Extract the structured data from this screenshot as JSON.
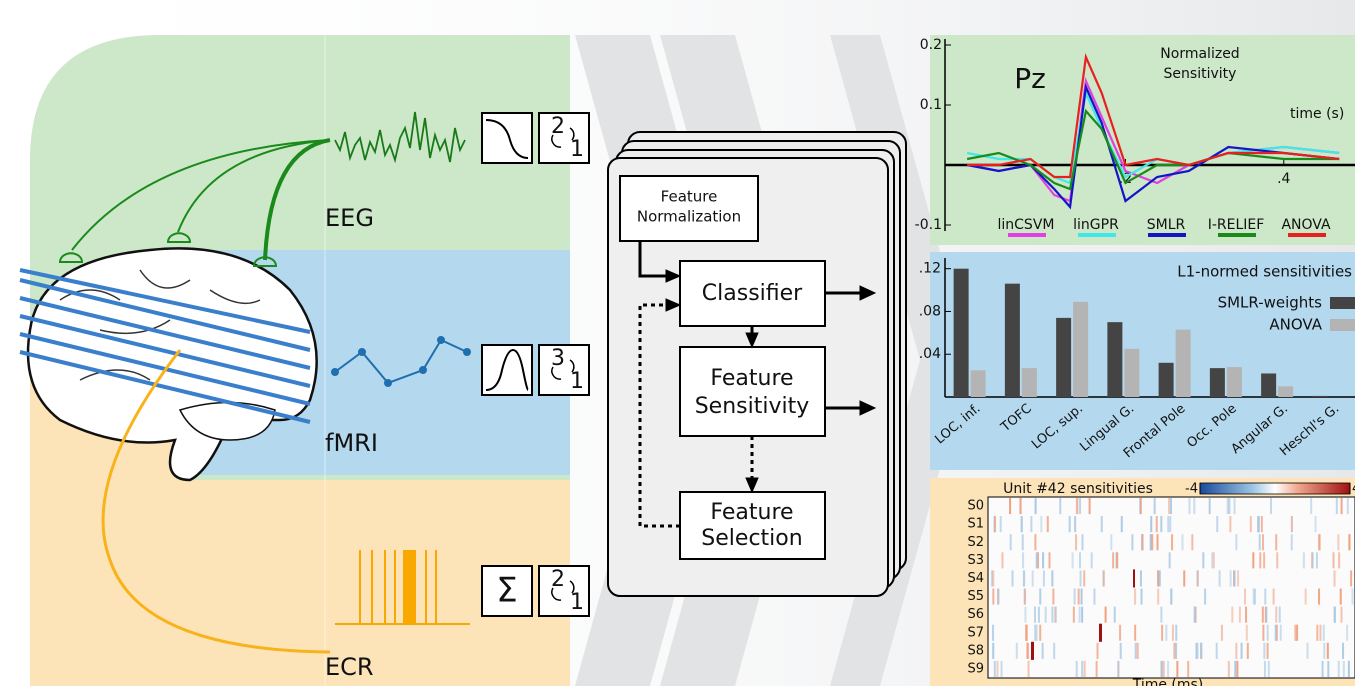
{
  "modalities": [
    "EEG",
    "fMRI",
    "ECR"
  ],
  "icons": {
    "eeg": [
      "2",
      "1"
    ],
    "fmri": [
      "3",
      "1"
    ],
    "ecr": [
      "Σ",
      "2",
      "1"
    ]
  },
  "pipeline": [
    {
      "lines": [
        "Feature",
        "Normalization"
      ]
    },
    {
      "lines": [
        "Classifier"
      ]
    },
    {
      "lines": [
        "Feature",
        "Sensitivity"
      ]
    },
    {
      "lines": [
        "Feature",
        "Selection"
      ]
    }
  ],
  "chart_data": [
    {
      "type": "line",
      "title": "Pz",
      "subtitle": [
        "Normalized",
        "Sensitivity"
      ],
      "xlabel": "time (s)",
      "x": [
        0,
        0.04,
        0.08,
        0.11,
        0.13,
        0.15,
        0.17,
        0.2,
        0.24,
        0.28,
        0.33,
        0.4,
        0.47
      ],
      "series": [
        {
          "name": "linCSVM",
          "color": "#e040e0",
          "values": [
            0.0,
            -0.01,
            0.0,
            -0.05,
            -0.06,
            0.14,
            0.08,
            -0.01,
            -0.03,
            0.0,
            0.02,
            0.03,
            0.02
          ]
        },
        {
          "name": "linGPR",
          "color": "#40e8e8",
          "values": [
            0.02,
            0.01,
            0.01,
            -0.02,
            -0.03,
            0.12,
            0.06,
            -0.02,
            0.01,
            0.0,
            0.02,
            0.03,
            0.02
          ]
        },
        {
          "name": "SMLR",
          "color": "#1515c8",
          "values": [
            0.0,
            -0.01,
            0.0,
            -0.04,
            -0.07,
            0.13,
            0.07,
            -0.06,
            -0.02,
            -0.01,
            0.03,
            0.02,
            0.01
          ]
        },
        {
          "name": "I-RELIEF",
          "color": "#1a8a1a",
          "values": [
            0.01,
            0.02,
            0.0,
            -0.03,
            -0.04,
            0.09,
            0.06,
            -0.03,
            0.0,
            0.0,
            0.02,
            0.01,
            0.01
          ]
        },
        {
          "name": "ANOVA",
          "color": "#e82020",
          "values": [
            0.0,
            0.0,
            0.01,
            -0.02,
            -0.02,
            0.18,
            0.12,
            0.0,
            0.01,
            0.0,
            0.02,
            0.02,
            0.01
          ]
        }
      ],
      "xlim": [
        -0.028,
        0.49
      ],
      "ylim": [
        -0.11,
        0.21
      ],
      "xticks": [
        {
          "value": 0.2,
          "label": ".2"
        },
        {
          "value": 0.4,
          "label": ".4"
        }
      ],
      "yticks": [
        -0.1,
        0.1,
        0.2
      ]
    },
    {
      "type": "bar",
      "title": "L1-normed sensitivities",
      "categories": [
        "LOC, inf.",
        "TOFC",
        "LOC, sup.",
        "Lingual G.",
        "Frontal Pole",
        "Occ. Pole",
        "Angular G.",
        "Heschl's G."
      ],
      "series": [
        {
          "name": "SMLR-weights",
          "color": "#444444",
          "values": [
            0.12,
            0.106,
            0.074,
            0.07,
            0.032,
            0.027,
            0.022,
            0.001
          ]
        },
        {
          "name": "ANOVA",
          "color": "#b4b4b4",
          "values": [
            0.025,
            0.027,
            0.089,
            0.045,
            0.063,
            0.028,
            0.01,
            0.0
          ]
        }
      ],
      "ylim": [
        0,
        0.13
      ],
      "yticks": [
        {
          "value": 0.04,
          "label": ".04"
        },
        {
          "value": 0.08,
          "label": ".08"
        },
        {
          "value": 0.12,
          "label": ".12"
        }
      ]
    },
    {
      "type": "heatmap",
      "title": "Unit #42 sensitivities",
      "categories": [
        "S0",
        "S1",
        "S2",
        "S3",
        "S4",
        "S5",
        "S6",
        "S7",
        "S8",
        "S9"
      ],
      "xlabel": "Time (ms)",
      "clim": [
        -4,
        4
      ],
      "cticks": [
        -4,
        4
      ]
    }
  ]
}
